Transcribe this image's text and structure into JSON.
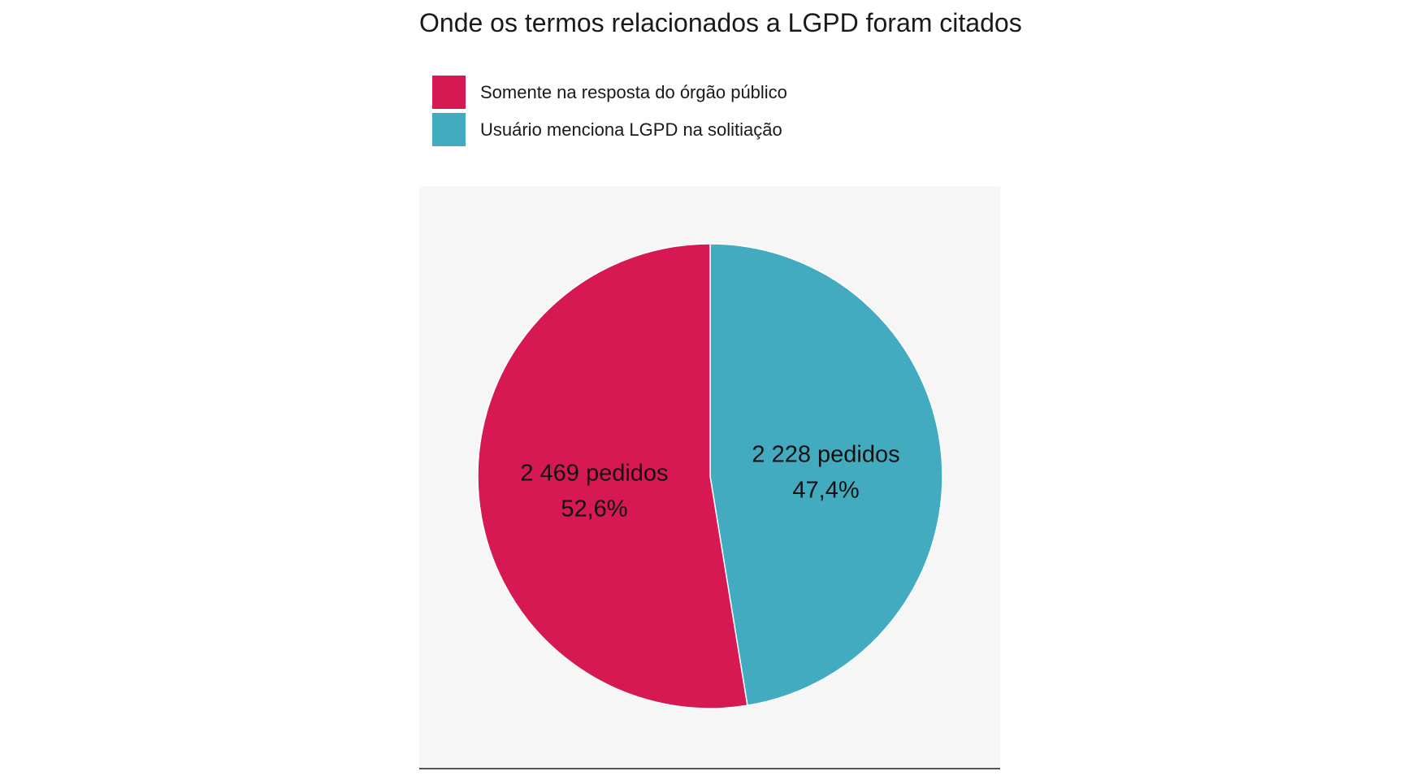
{
  "title": "Onde os termos relacionados a LGPD foram citados",
  "legend": {
    "placement": "top-left",
    "items": [
      {
        "label": "Somente na resposta do órgão público",
        "color": "#d61952"
      },
      {
        "label": "Usuário menciona LGPD na solitiação",
        "color": "#42abc0"
      }
    ]
  },
  "chart_data": {
    "type": "pie",
    "title": "Onde os termos relacionados a LGPD foram citados",
    "slices": [
      {
        "name": "Usuário menciona LGPD na solitiação",
        "value": 2228,
        "count_label": "2 228 pedidos",
        "percent_label": "47,4%",
        "color": "#42abc0"
      },
      {
        "name": "Somente na resposta do órgão público",
        "value": 2469,
        "count_label": "2 469 pedidos",
        "percent_label": "52,6%",
        "color": "#d61952"
      }
    ],
    "legend": "top-left",
    "grid": false
  }
}
